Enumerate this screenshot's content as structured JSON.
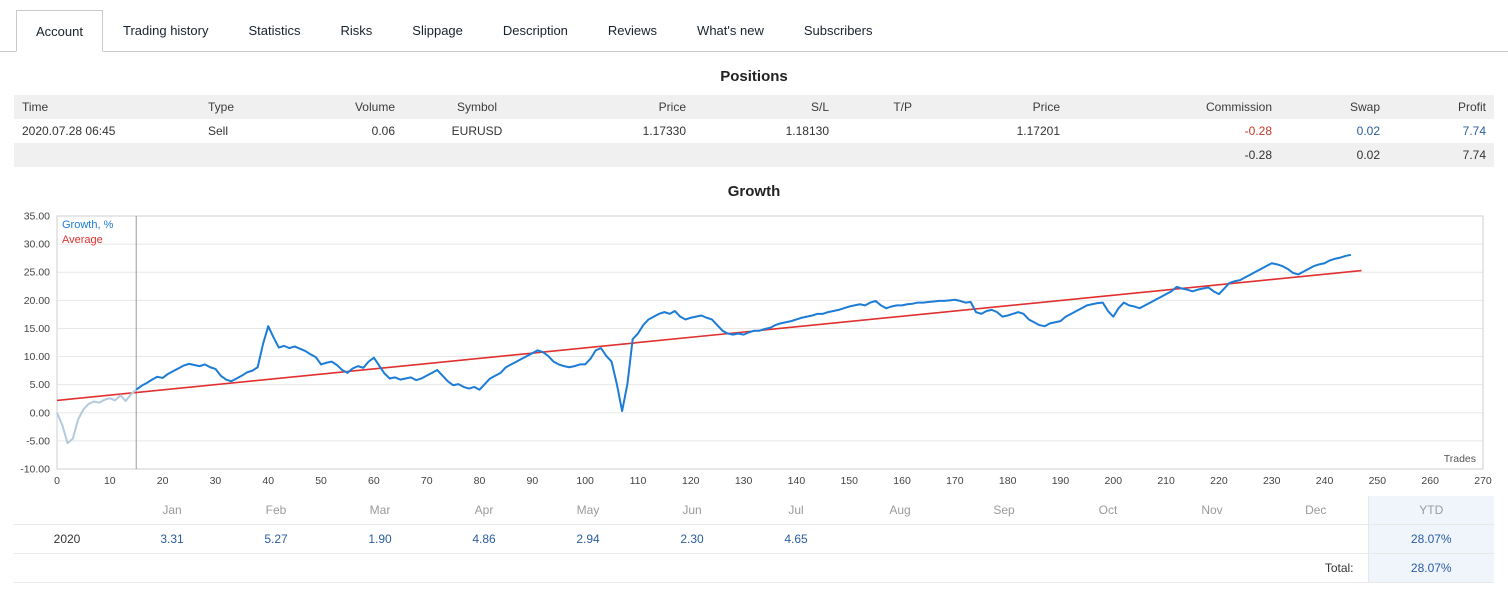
{
  "tabs": {
    "items": [
      {
        "label": "Account",
        "active": true
      },
      {
        "label": "Trading history",
        "active": false
      },
      {
        "label": "Statistics",
        "active": false
      },
      {
        "label": "Risks",
        "active": false
      },
      {
        "label": "Slippage",
        "active": false
      },
      {
        "label": "Description",
        "active": false
      },
      {
        "label": "Reviews",
        "active": false
      },
      {
        "label": "What's new",
        "active": false
      },
      {
        "label": "Subscribers",
        "active": false
      }
    ]
  },
  "positions": {
    "title": "Positions",
    "columns": [
      "Time",
      "Type",
      "Volume",
      "Symbol",
      "Price",
      "S/L",
      "T/P",
      "Price",
      "Commission",
      "Swap",
      "Profit"
    ],
    "rows": [
      {
        "time": "2020.07.28 06:45",
        "type": "Sell",
        "volume": "0.06",
        "symbol": "EURUSD",
        "price": "1.17330",
        "sl": "1.18130",
        "tp": "",
        "price2": "1.17201",
        "commission": "-0.28",
        "swap": "0.02",
        "profit": "7.74"
      }
    ],
    "summary": {
      "commission": "-0.28",
      "swap": "0.02",
      "profit": "7.74"
    }
  },
  "growth": {
    "title": "Growth",
    "legend": [
      {
        "label": "Growth, %",
        "color": "#1c7cd6"
      },
      {
        "label": "Average",
        "color": "#e03030"
      }
    ]
  },
  "chart_data": {
    "type": "line",
    "title": "Growth",
    "xlabel": "Trades",
    "ylabel": "Growth, %",
    "xlim": [
      0,
      270
    ],
    "ylim": [
      -10,
      35
    ],
    "x_ticks": [
      0,
      10,
      20,
      30,
      40,
      50,
      60,
      70,
      80,
      90,
      100,
      110,
      120,
      130,
      140,
      150,
      160,
      170,
      180,
      190,
      200,
      210,
      220,
      230,
      240,
      250,
      260,
      270
    ],
    "y_ticks": [
      35,
      30,
      25,
      20,
      15,
      10,
      5,
      0,
      -5,
      -10
    ],
    "grid": "horizontal",
    "legend_position": "top-left",
    "start_marker_x": 15,
    "pre_start_color": "#b3c9de",
    "series": [
      {
        "name": "Growth, %",
        "color": "#1c7cd6",
        "points": [
          [
            0,
            0
          ],
          [
            1,
            -2.2
          ],
          [
            2,
            -5.4
          ],
          [
            3,
            -4.6
          ],
          [
            4,
            -1.2
          ],
          [
            5,
            0.6
          ],
          [
            6,
            1.6
          ],
          [
            7,
            2.0
          ],
          [
            8,
            1.8
          ],
          [
            9,
            2.3
          ],
          [
            10,
            2.6
          ],
          [
            11,
            2.2
          ],
          [
            12,
            3.1
          ],
          [
            13,
            2.1
          ],
          [
            14,
            3.3
          ],
          [
            15,
            4.1
          ],
          [
            16,
            4.8
          ],
          [
            17,
            5.3
          ],
          [
            18,
            5.9
          ],
          [
            19,
            6.4
          ],
          [
            20,
            6.2
          ],
          [
            21,
            6.9
          ],
          [
            22,
            7.4
          ],
          [
            23,
            7.9
          ],
          [
            24,
            8.4
          ],
          [
            25,
            8.7
          ],
          [
            26,
            8.5
          ],
          [
            27,
            8.3
          ],
          [
            28,
            8.6
          ],
          [
            29,
            8.1
          ],
          [
            30,
            7.8
          ],
          [
            31,
            6.6
          ],
          [
            32,
            5.9
          ],
          [
            33,
            5.6
          ],
          [
            34,
            6.1
          ],
          [
            35,
            6.6
          ],
          [
            36,
            7.2
          ],
          [
            37,
            7.5
          ],
          [
            38,
            8.1
          ],
          [
            39,
            12.2
          ],
          [
            40,
            15.4
          ],
          [
            41,
            13.4
          ],
          [
            42,
            11.6
          ],
          [
            43,
            11.9
          ],
          [
            44,
            11.5
          ],
          [
            45,
            11.8
          ],
          [
            46,
            11.4
          ],
          [
            47,
            11.0
          ],
          [
            48,
            10.4
          ],
          [
            49,
            9.9
          ],
          [
            50,
            8.6
          ],
          [
            51,
            8.9
          ],
          [
            52,
            9.1
          ],
          [
            53,
            8.5
          ],
          [
            54,
            7.6
          ],
          [
            55,
            7.1
          ],
          [
            56,
            7.9
          ],
          [
            57,
            8.3
          ],
          [
            58,
            8.0
          ],
          [
            59,
            9.1
          ],
          [
            60,
            9.8
          ],
          [
            61,
            8.4
          ],
          [
            62,
            7.0
          ],
          [
            63,
            6.1
          ],
          [
            64,
            6.3
          ],
          [
            65,
            5.9
          ],
          [
            66,
            6.1
          ],
          [
            67,
            6.3
          ],
          [
            68,
            5.8
          ],
          [
            69,
            6.1
          ],
          [
            70,
            6.6
          ],
          [
            71,
            7.1
          ],
          [
            72,
            7.6
          ],
          [
            73,
            6.6
          ],
          [
            74,
            5.6
          ],
          [
            75,
            4.9
          ],
          [
            76,
            5.1
          ],
          [
            77,
            4.6
          ],
          [
            78,
            4.3
          ],
          [
            79,
            4.6
          ],
          [
            80,
            4.1
          ],
          [
            81,
            5.1
          ],
          [
            82,
            6.1
          ],
          [
            83,
            6.6
          ],
          [
            84,
            7.1
          ],
          [
            85,
            8.1
          ],
          [
            86,
            8.6
          ],
          [
            87,
            9.1
          ],
          [
            88,
            9.6
          ],
          [
            89,
            10.1
          ],
          [
            90,
            10.6
          ],
          [
            91,
            11.1
          ],
          [
            92,
            10.8
          ],
          [
            93,
            10.1
          ],
          [
            94,
            9.1
          ],
          [
            95,
            8.6
          ],
          [
            96,
            8.3
          ],
          [
            97,
            8.1
          ],
          [
            98,
            8.3
          ],
          [
            99,
            8.6
          ],
          [
            100,
            8.6
          ],
          [
            101,
            9.6
          ],
          [
            102,
            11.1
          ],
          [
            103,
            11.5
          ],
          [
            104,
            10.1
          ],
          [
            105,
            9.1
          ],
          [
            106,
            5.1
          ],
          [
            107,
            0.3
          ],
          [
            108,
            5.1
          ],
          [
            109,
            13.1
          ],
          [
            110,
            14.1
          ],
          [
            111,
            15.6
          ],
          [
            112,
            16.6
          ],
          [
            113,
            17.1
          ],
          [
            114,
            17.6
          ],
          [
            115,
            17.9
          ],
          [
            116,
            17.6
          ],
          [
            117,
            18.1
          ],
          [
            118,
            17.1
          ],
          [
            119,
            16.6
          ],
          [
            120,
            16.9
          ],
          [
            121,
            17.1
          ],
          [
            122,
            17.3
          ],
          [
            123,
            16.9
          ],
          [
            124,
            16.6
          ],
          [
            125,
            15.6
          ],
          [
            126,
            14.6
          ],
          [
            127,
            14.1
          ],
          [
            128,
            13.9
          ],
          [
            129,
            14.1
          ],
          [
            130,
            13.9
          ],
          [
            131,
            14.3
          ],
          [
            132,
            14.6
          ],
          [
            133,
            14.6
          ],
          [
            134,
            14.9
          ],
          [
            135,
            15.1
          ],
          [
            136,
            15.6
          ],
          [
            137,
            15.9
          ],
          [
            138,
            16.1
          ],
          [
            139,
            16.3
          ],
          [
            140,
            16.6
          ],
          [
            141,
            16.9
          ],
          [
            142,
            17.1
          ],
          [
            143,
            17.3
          ],
          [
            144,
            17.6
          ],
          [
            145,
            17.6
          ],
          [
            146,
            17.9
          ],
          [
            147,
            18.1
          ],
          [
            148,
            18.3
          ],
          [
            149,
            18.6
          ],
          [
            150,
            18.9
          ],
          [
            151,
            19.1
          ],
          [
            152,
            19.3
          ],
          [
            153,
            19.1
          ],
          [
            154,
            19.6
          ],
          [
            155,
            19.9
          ],
          [
            156,
            19.1
          ],
          [
            157,
            18.6
          ],
          [
            158,
            18.9
          ],
          [
            159,
            19.1
          ],
          [
            160,
            19.1
          ],
          [
            161,
            19.3
          ],
          [
            162,
            19.4
          ],
          [
            163,
            19.6
          ],
          [
            164,
            19.6
          ],
          [
            165,
            19.7
          ],
          [
            166,
            19.8
          ],
          [
            167,
            19.9
          ],
          [
            168,
            19.9
          ],
          [
            169,
            20.0
          ],
          [
            170,
            20.1
          ],
          [
            171,
            19.9
          ],
          [
            172,
            19.6
          ],
          [
            173,
            19.7
          ],
          [
            174,
            17.9
          ],
          [
            175,
            17.6
          ],
          [
            176,
            18.1
          ],
          [
            177,
            18.3
          ],
          [
            178,
            17.9
          ],
          [
            179,
            17.1
          ],
          [
            180,
            17.3
          ],
          [
            181,
            17.6
          ],
          [
            182,
            17.9
          ],
          [
            183,
            17.6
          ],
          [
            184,
            16.6
          ],
          [
            185,
            16.1
          ],
          [
            186,
            15.6
          ],
          [
            187,
            15.4
          ],
          [
            188,
            15.9
          ],
          [
            189,
            16.1
          ],
          [
            190,
            16.3
          ],
          [
            191,
            17.1
          ],
          [
            192,
            17.6
          ],
          [
            193,
            18.1
          ],
          [
            194,
            18.6
          ],
          [
            195,
            19.1
          ],
          [
            196,
            19.3
          ],
          [
            197,
            19.5
          ],
          [
            198,
            19.6
          ],
          [
            199,
            18.1
          ],
          [
            200,
            17.1
          ],
          [
            201,
            18.6
          ],
          [
            202,
            19.6
          ],
          [
            203,
            19.1
          ],
          [
            204,
            18.9
          ],
          [
            205,
            18.6
          ],
          [
            206,
            19.1
          ],
          [
            207,
            19.6
          ],
          [
            208,
            20.1
          ],
          [
            209,
            20.6
          ],
          [
            210,
            21.1
          ],
          [
            211,
            21.6
          ],
          [
            212,
            22.4
          ],
          [
            213,
            22.1
          ],
          [
            214,
            21.9
          ],
          [
            215,
            21.6
          ],
          [
            216,
            21.9
          ],
          [
            217,
            22.1
          ],
          [
            218,
            22.3
          ],
          [
            219,
            21.6
          ],
          [
            220,
            21.1
          ],
          [
            221,
            22.1
          ],
          [
            222,
            23.1
          ],
          [
            223,
            23.4
          ],
          [
            224,
            23.6
          ],
          [
            225,
            24.1
          ],
          [
            226,
            24.6
          ],
          [
            227,
            25.1
          ],
          [
            228,
            25.6
          ],
          [
            229,
            26.1
          ],
          [
            230,
            26.6
          ],
          [
            231,
            26.4
          ],
          [
            232,
            26.1
          ],
          [
            233,
            25.6
          ],
          [
            234,
            24.9
          ],
          [
            235,
            24.6
          ],
          [
            236,
            25.1
          ],
          [
            237,
            25.6
          ],
          [
            238,
            26.1
          ],
          [
            239,
            26.4
          ],
          [
            240,
            26.6
          ],
          [
            241,
            27.1
          ],
          [
            242,
            27.4
          ],
          [
            243,
            27.6
          ],
          [
            244,
            27.9
          ],
          [
            245,
            28.1
          ]
        ]
      },
      {
        "name": "Average",
        "color": "#e03030",
        "points": [
          [
            0,
            2.2
          ],
          [
            247,
            25.3
          ]
        ]
      }
    ]
  },
  "monthly": {
    "year": "2020",
    "columns": [
      "Jan",
      "Feb",
      "Mar",
      "Apr",
      "May",
      "Jun",
      "Jul",
      "Aug",
      "Sep",
      "Oct",
      "Nov",
      "Dec",
      "YTD"
    ],
    "values": [
      "3.31",
      "5.27",
      "1.90",
      "4.86",
      "2.94",
      "2.30",
      "4.65",
      "",
      "",
      "",
      "",
      "",
      "28.07%"
    ],
    "total_label": "Total:",
    "total_value": "28.07%"
  }
}
